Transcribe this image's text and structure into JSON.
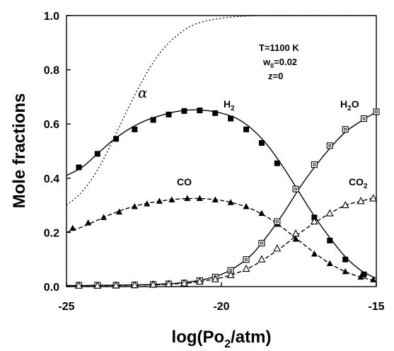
{
  "chart_data": {
    "type": "line",
    "title": "",
    "xlabel": "log(Po₂/atm)",
    "xlabel_main": "log(Po",
    "xlabel_sub": "2",
    "xlabel_tail": "/atm)",
    "ylabel": "Mole fractions",
    "xlim": [
      -25,
      -15
    ],
    "ylim": [
      0,
      1.0
    ],
    "x_ticks": [
      -25,
      -20,
      -15
    ],
    "x_tick_labels": [
      "-25",
      "-20",
      "-15"
    ],
    "y_ticks": [
      0,
      0.2,
      0.4,
      0.6,
      0.8,
      1.0
    ],
    "y_tick_labels": [
      "0.0",
      "0.2",
      "0.4",
      "0.6",
      "0.8",
      "1.0"
    ],
    "grid": false,
    "legend": "none",
    "annotations": [
      "T=1100 K",
      "w",
      "0",
      "=0.02",
      "z=0"
    ],
    "series": [
      {
        "name": "H2",
        "label_main": "H",
        "label_sub": "2",
        "marker": "filled-square",
        "line": "solid",
        "x": [
          -25.0,
          -24.5,
          -24.0,
          -23.5,
          -23.0,
          -22.5,
          -22.0,
          -21.5,
          -21.0,
          -20.5,
          -20.0,
          -19.5,
          -19.0,
          -18.5,
          -18.0,
          -17.5,
          -17.0,
          -16.5,
          -16.0,
          -15.5,
          -15.0
        ],
        "values": [
          0.41,
          0.44,
          0.49,
          0.54,
          0.58,
          0.61,
          0.63,
          0.645,
          0.652,
          0.65,
          0.64,
          0.62,
          0.58,
          0.52,
          0.44,
          0.35,
          0.26,
          0.18,
          0.11,
          0.06,
          0.03
        ],
        "marker_x": [
          -24.6,
          -24.0,
          -23.4,
          -22.8,
          -22.2,
          -21.7,
          -21.2,
          -20.7,
          -20.2,
          -19.7,
          -19.2,
          -18.7,
          -18.2,
          -17.6,
          -17.0,
          -16.5,
          -16.0,
          -15.4
        ],
        "marker_values": [
          0.44,
          0.49,
          0.545,
          0.58,
          0.615,
          0.635,
          0.648,
          0.65,
          0.64,
          0.62,
          0.58,
          0.53,
          0.455,
          0.36,
          0.255,
          0.17,
          0.1,
          0.045
        ]
      },
      {
        "name": "CO",
        "label_main": "CO",
        "label_sub": "",
        "marker": "filled-triangle",
        "line": "dashed",
        "x": [
          -25.0,
          -24.5,
          -24.0,
          -23.5,
          -23.0,
          -22.5,
          -22.0,
          -21.5,
          -21.0,
          -20.5,
          -20.0,
          -19.5,
          -19.0,
          -18.5,
          -18.0,
          -17.5,
          -17.0,
          -16.5,
          -16.0,
          -15.5,
          -15.0
        ],
        "values": [
          0.2,
          0.22,
          0.245,
          0.27,
          0.29,
          0.305,
          0.315,
          0.322,
          0.325,
          0.324,
          0.318,
          0.305,
          0.285,
          0.255,
          0.215,
          0.17,
          0.125,
          0.085,
          0.055,
          0.035,
          0.02
        ],
        "marker_x": [
          -24.8,
          -24.3,
          -23.8,
          -23.3,
          -22.8,
          -22.4,
          -22.0,
          -21.6,
          -21.1,
          -20.7,
          -20.2,
          -19.7,
          -19.2,
          -18.7,
          -18.2,
          -17.6,
          -17.0,
          -16.5,
          -16.0,
          -15.5,
          -15.1
        ],
        "marker_values": [
          0.215,
          0.235,
          0.255,
          0.275,
          0.295,
          0.305,
          0.315,
          0.32,
          0.325,
          0.325,
          0.32,
          0.31,
          0.295,
          0.27,
          0.23,
          0.175,
          0.12,
          0.085,
          0.055,
          0.035,
          0.025
        ]
      },
      {
        "name": "H2O",
        "label_main": "H",
        "label_sub": "2",
        "label_tail": "O",
        "marker": "open-square-dot",
        "line": "solid",
        "x": [
          -25.0,
          -24.5,
          -24.0,
          -23.5,
          -23.0,
          -22.5,
          -22.0,
          -21.5,
          -21.0,
          -20.5,
          -20.0,
          -19.5,
          -19.0,
          -18.5,
          -18.0,
          -17.5,
          -17.0,
          -16.5,
          -16.0,
          -15.5,
          -15.0
        ],
        "values": [
          0.004,
          0.004,
          0.005,
          0.005,
          0.006,
          0.007,
          0.009,
          0.012,
          0.018,
          0.028,
          0.045,
          0.075,
          0.12,
          0.19,
          0.27,
          0.36,
          0.44,
          0.51,
          0.57,
          0.61,
          0.645
        ],
        "marker_x": [
          -24.6,
          -24.0,
          -23.4,
          -22.8,
          -22.2,
          -21.7,
          -21.2,
          -20.7,
          -20.2,
          -19.7,
          -19.2,
          -18.7,
          -18.2,
          -17.6,
          -17.0,
          -16.5,
          -16.0,
          -15.4,
          -15.0
        ],
        "marker_values": [
          0.005,
          0.005,
          0.005,
          0.006,
          0.008,
          0.01,
          0.013,
          0.022,
          0.035,
          0.06,
          0.1,
          0.16,
          0.24,
          0.36,
          0.45,
          0.52,
          0.58,
          0.62,
          0.645
        ]
      },
      {
        "name": "CO2",
        "label_main": "CO",
        "label_sub": "2",
        "marker": "open-triangle",
        "line": "dashed",
        "x": [
          -25.0,
          -24.5,
          -24.0,
          -23.5,
          -23.0,
          -22.5,
          -22.0,
          -21.5,
          -21.0,
          -20.5,
          -20.0,
          -19.5,
          -19.0,
          -18.5,
          -18.0,
          -17.5,
          -17.0,
          -16.5,
          -16.0,
          -15.5,
          -15.0
        ],
        "values": [
          0.003,
          0.003,
          0.003,
          0.004,
          0.005,
          0.006,
          0.007,
          0.01,
          0.014,
          0.022,
          0.033,
          0.05,
          0.075,
          0.11,
          0.15,
          0.195,
          0.235,
          0.27,
          0.3,
          0.315,
          0.33
        ],
        "marker_x": [
          -24.6,
          -24.0,
          -23.4,
          -22.8,
          -22.2,
          -21.7,
          -21.2,
          -20.7,
          -20.2,
          -19.7,
          -19.2,
          -18.7,
          -18.2,
          -17.6,
          -17.0,
          -16.5,
          -16.0,
          -15.5,
          -15.1
        ],
        "marker_values": [
          0.003,
          0.003,
          0.004,
          0.005,
          0.007,
          0.009,
          0.012,
          0.018,
          0.027,
          0.042,
          0.065,
          0.1,
          0.14,
          0.195,
          0.24,
          0.27,
          0.3,
          0.315,
          0.325
        ]
      },
      {
        "name": "α",
        "label_main": "α",
        "label_sub": "",
        "marker": "none",
        "line": "dotted",
        "x": [
          -25.0,
          -24.5,
          -24.0,
          -23.5,
          -23.0,
          -22.5,
          -22.0,
          -21.5,
          -21.0,
          -20.5,
          -20.0,
          -19.5,
          -19.0,
          -18.5,
          -18.0,
          -17.5,
          -17.0,
          -16.0,
          -15.0
        ],
        "values": [
          0.3,
          0.35,
          0.43,
          0.54,
          0.66,
          0.77,
          0.86,
          0.92,
          0.96,
          0.98,
          0.99,
          0.996,
          0.999,
          1.0,
          1.0,
          1.0,
          1.0,
          1.0,
          1.0
        ]
      }
    ]
  }
}
